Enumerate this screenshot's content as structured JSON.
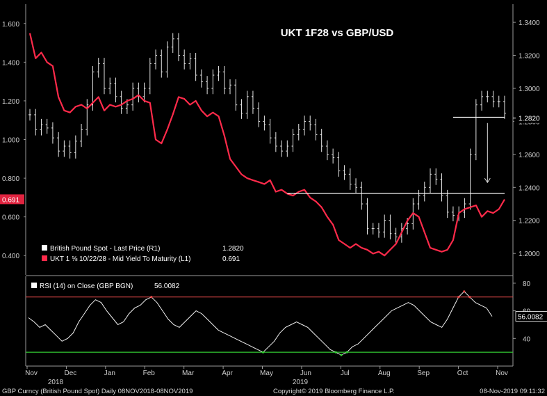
{
  "chart_data": {
    "type": "line",
    "title": "UKT 1F28 vs GBP/USD",
    "x_labels": [
      "Nov",
      "Dec",
      "Jan",
      "Feb",
      "Mar",
      "Apr",
      "May",
      "Jun",
      "Jul",
      "Aug",
      "Sep",
      "Oct",
      "Nov"
    ],
    "year_labels": [
      "2018",
      "2019"
    ],
    "left_axis": {
      "ticks": [
        "0.400",
        "0.600",
        "0.800",
        "1.000",
        "1.200",
        "1.400",
        "1.600"
      ],
      "ylim": [
        0.3,
        1.7
      ]
    },
    "right_axis": {
      "ticks": [
        "1.2000",
        "1.2200",
        "1.2400",
        "1.2600",
        "1.2800",
        "1.3000",
        "1.3200",
        "1.3400"
      ],
      "ylim": [
        1.187,
        1.351
      ]
    },
    "series": [
      {
        "name": "British Pound Spot - Last Price (R1)",
        "last": "1.2820",
        "color": "#ffffff",
        "axis": "right",
        "style": "ohlc",
        "values": [
          1.284,
          1.275,
          1.278,
          1.276,
          1.27,
          1.262,
          1.265,
          1.261,
          1.268,
          1.275,
          1.29,
          1.31,
          1.315,
          1.3,
          1.303,
          1.295,
          1.288,
          1.29,
          1.3,
          1.295,
          1.3,
          1.315,
          1.32,
          1.31,
          1.325,
          1.33,
          1.32,
          1.315,
          1.318,
          1.308,
          1.304,
          1.3,
          1.308,
          1.31,
          1.3,
          1.302,
          1.29,
          1.285,
          1.295,
          1.288,
          1.28,
          1.278,
          1.27,
          1.265,
          1.262,
          1.265,
          1.272,
          1.275,
          1.28,
          1.278,
          1.272,
          1.265,
          1.26,
          1.258,
          1.25,
          1.248,
          1.242,
          1.24,
          1.23,
          1.215,
          1.215,
          1.213,
          1.22,
          1.212,
          1.21,
          1.215,
          1.218,
          1.23,
          1.235,
          1.24,
          1.248,
          1.245,
          1.235,
          1.225,
          1.223,
          1.225,
          1.23,
          1.26,
          1.29,
          1.295,
          1.295,
          1.292,
          1.292,
          1.285
        ]
      },
      {
        "name": "UKT 1 ⅝ 10/22/28 - Mid Yield To Maturity (L1)",
        "last": "0.691",
        "color": "#ff2a4a",
        "axis": "left",
        "style": "line",
        "values": [
          1.55,
          1.42,
          1.45,
          1.4,
          1.38,
          1.22,
          1.15,
          1.14,
          1.17,
          1.18,
          1.16,
          1.19,
          1.22,
          1.15,
          1.18,
          1.17,
          1.18,
          1.2,
          1.21,
          1.23,
          1.2,
          1.19,
          1.0,
          0.98,
          1.05,
          1.13,
          1.22,
          1.21,
          1.18,
          1.2,
          1.15,
          1.12,
          1.14,
          1.12,
          1.02,
          0.9,
          0.86,
          0.82,
          0.8,
          0.79,
          0.78,
          0.77,
          0.79,
          0.73,
          0.74,
          0.72,
          0.71,
          0.73,
          0.74,
          0.7,
          0.68,
          0.65,
          0.6,
          0.56,
          0.48,
          0.46,
          0.44,
          0.46,
          0.44,
          0.43,
          0.41,
          0.42,
          0.4,
          0.43,
          0.46,
          0.52,
          0.58,
          0.62,
          0.6,
          0.52,
          0.44,
          0.43,
          0.42,
          0.43,
          0.48,
          0.62,
          0.64,
          0.65,
          0.66,
          0.6,
          0.63,
          0.62,
          0.64,
          0.69
        ]
      }
    ],
    "annotations": [
      {
        "type": "hline",
        "axis": "right",
        "value": 1.2825,
        "x_start_index": 74
      },
      {
        "type": "hline",
        "axis": "right",
        "value": 1.2365,
        "x_start_index": 45
      },
      {
        "type": "arrow",
        "axis": "right",
        "from": 1.279,
        "to": 1.243,
        "x_index": 80
      }
    ],
    "rsi": {
      "label": "RSI (14)  on Close (GBP BGN)",
      "last": "56.0082",
      "ticks": [
        "40",
        "60",
        "80"
      ],
      "ylim": [
        20,
        85
      ],
      "overbought": 70,
      "oversold": 30,
      "overbought_color": "#e84a4a",
      "oversold_color": "#33cc33",
      "values": [
        55,
        52,
        48,
        50,
        46,
        42,
        38,
        40,
        44,
        52,
        58,
        64,
        68,
        66,
        60,
        55,
        50,
        52,
        58,
        62,
        64,
        68,
        70,
        66,
        60,
        54,
        50,
        48,
        52,
        56,
        60,
        58,
        54,
        50,
        46,
        44,
        42,
        40,
        38,
        36,
        34,
        32,
        30,
        34,
        38,
        44,
        48,
        50,
        52,
        50,
        48,
        44,
        40,
        36,
        32,
        30,
        28,
        30,
        34,
        36,
        40,
        44,
        48,
        52,
        56,
        60,
        62,
        64,
        66,
        64,
        60,
        56,
        52,
        50,
        48,
        54,
        62,
        70,
        74,
        70,
        66,
        64,
        62,
        56
      ]
    },
    "footer": {
      "left": "GBP Curncy (British Pound Spot)  Daily 08NOV2018-08NOV2019",
      "center": "Copyright© 2019 Bloomberg Finance L.P.",
      "right": "08-Nov-2019 09:11:32"
    }
  }
}
